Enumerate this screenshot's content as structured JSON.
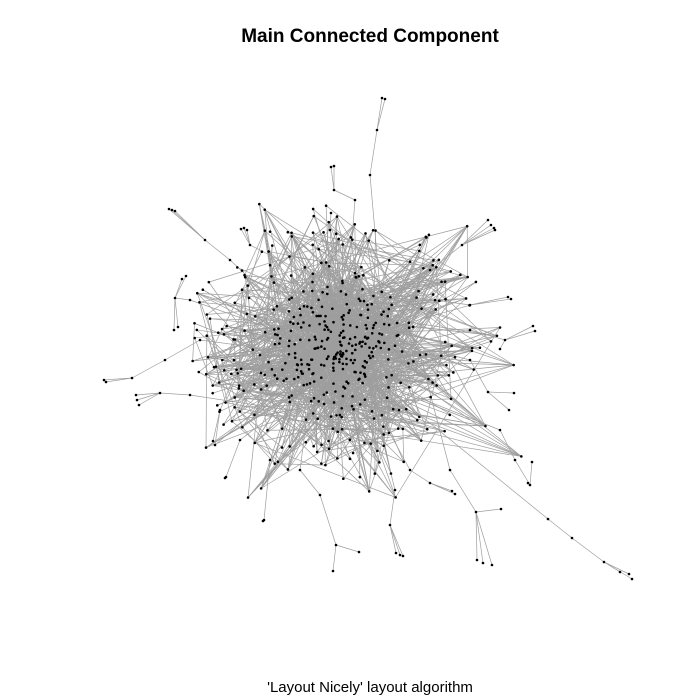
{
  "plot": {
    "title": "Main Connected Component",
    "caption": "'Layout Nicely' layout algorithm"
  },
  "style": {
    "edge_color": "#9e9e9e",
    "node_color": "#000000",
    "background": "#ffffff"
  }
}
